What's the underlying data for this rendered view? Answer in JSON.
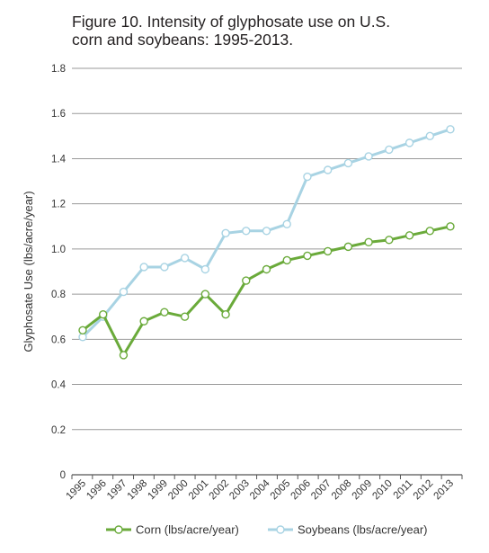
{
  "chart_data": {
    "type": "line",
    "title_lines": [
      "Figure 10. Intensity of glyphosate use on U.S.",
      "corn and soybeans: 1995-2013."
    ],
    "ylabel": "Glyphosate Use (lbs/acre/year)",
    "xlabel": "",
    "ylim": [
      0,
      1.8
    ],
    "yticks": [
      "0",
      "0.2",
      "0.4",
      "0.6",
      "0.8",
      "1.0",
      "1.2",
      "1.4",
      "1.6",
      "1.8"
    ],
    "grid": true,
    "legend_position": "bottom",
    "categories": [
      "1995",
      "1996",
      "1997",
      "1998",
      "1999",
      "2000",
      "2001",
      "2002",
      "2003",
      "2004",
      "2005",
      "2006",
      "2007",
      "2008",
      "2009",
      "2010",
      "2011",
      "2012",
      "2013"
    ],
    "series": [
      {
        "name": "Corn (lbs/acre/year)",
        "color": "#6aaa3a",
        "values": [
          0.64,
          0.71,
          0.53,
          0.68,
          0.72,
          0.7,
          0.8,
          0.71,
          0.86,
          0.91,
          0.95,
          0.97,
          0.99,
          1.01,
          1.03,
          1.04,
          1.06,
          1.08,
          1.1
        ]
      },
      {
        "name": "Soybeans (lbs/acre/year)",
        "color": "#a8d3e3",
        "values": [
          0.61,
          0.7,
          0.81,
          0.92,
          0.92,
          0.96,
          0.91,
          1.07,
          1.08,
          1.08,
          1.11,
          1.32,
          1.35,
          1.38,
          1.41,
          1.44,
          1.47,
          1.5,
          1.53
        ]
      }
    ]
  }
}
